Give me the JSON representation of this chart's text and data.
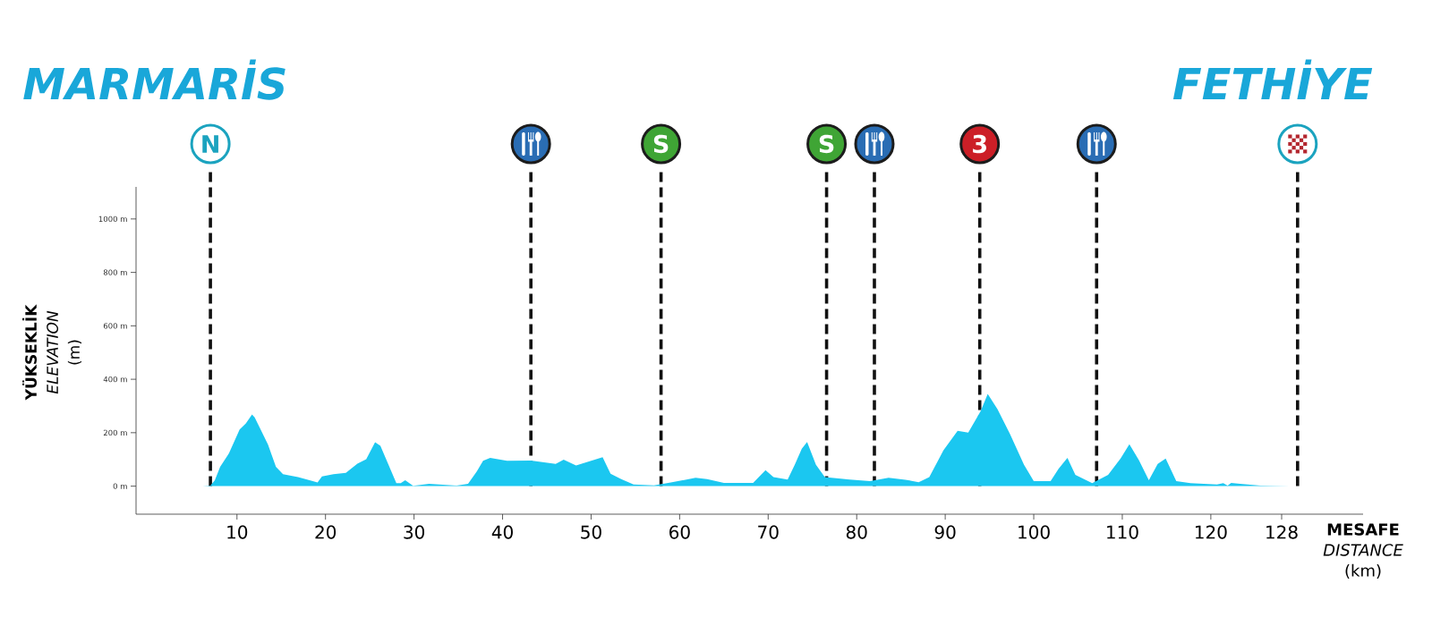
{
  "chart_data": {
    "type": "area",
    "annotations": [
      "MARMARİS",
      "FETHİYE",
      "3"
    ],
    "xlabel": "**MESAFE** *DISTANCE* (km)",
    "ylabel": "**YÜKSEKLİK** *ELEVATION* (m)",
    "color": "#1bc7f0",
    "x": [
      6.1,
      7.0,
      7.5,
      8.1,
      9.1,
      10.3,
      11.0,
      11.7,
      12.0,
      13.5,
      14.4,
      15.2,
      16.9,
      18.2,
      19.1,
      19.6,
      20.9,
      22.3,
      23.6,
      24.6,
      25.6,
      26.2,
      27.0,
      28.0,
      28.5,
      29.0,
      29.9,
      31.7,
      34.8,
      36.1,
      37.1,
      37.8,
      38.6,
      40.5,
      43.2,
      46.0,
      46.9,
      48.3,
      51.3,
      52.2,
      53.4,
      54.8,
      57.1,
      59.0,
      61.8,
      63.1,
      65.0,
      68.3,
      69.7,
      70.6,
      72.2,
      73.0,
      73.8,
      74.4,
      75.4,
      76.4,
      79.2,
      81.5,
      83.6,
      85.5,
      87.0,
      88.2,
      89.8,
      91.4,
      92.6,
      94.0,
      94.8,
      95.9,
      97.3,
      98.9,
      100.0,
      101.9,
      102.8,
      103.8,
      104.7,
      106.6,
      108.4,
      109.8,
      110.8,
      111.9,
      113.0,
      114.0,
      114.9,
      116.1,
      117.7,
      120.7,
      121.4,
      121.9,
      122.3,
      123.3,
      125.6,
      128.9
    ],
    "values": [
      0,
      2,
      22,
      72,
      123,
      212,
      235,
      268,
      257,
      156,
      72,
      45,
      34,
      22,
      14,
      36,
      45,
      50,
      84,
      101,
      164,
      151,
      89,
      11,
      11,
      22,
      1,
      9,
      2,
      9,
      56,
      95,
      106,
      95,
      96,
      83,
      99,
      77,
      108,
      46,
      26,
      6,
      3,
      14,
      31,
      26,
      12,
      12,
      60,
      34,
      25,
      80,
      140,
      165,
      80,
      34,
      25,
      19,
      31,
      24,
      15,
      34,
      134,
      207,
      200,
      281,
      345,
      288,
      196,
      80,
      19,
      19,
      65,
      106,
      42,
      11,
      42,
      103,
      157,
      96,
      22,
      83,
      103,
      19,
      11,
      6,
      11,
      2,
      12,
      9,
      2,
      0
    ],
    "xlim": [
      -1.4,
      137.2
    ],
    "ylim": [
      -105,
      1120
    ],
    "xticks": [
      10,
      20,
      30,
      40,
      50,
      60,
      70,
      80,
      90,
      100,
      110,
      120,
      128
    ],
    "yticks": [
      {
        "value": 0,
        "label": "0 m"
      },
      {
        "value": 200,
        "label": "200 m"
      },
      {
        "value": 400,
        "label": "400 m"
      },
      {
        "value": 600,
        "label": "600 m"
      },
      {
        "value": 800,
        "label": "800 m"
      },
      {
        "value": 1000,
        "label": "1000 m"
      }
    ],
    "ref_lines": [
      {
        "axis": "x",
        "value": 7.0,
        "label": "N",
        "color": "#111111",
        "line_style": "dashed"
      },
      {
        "axis": "x",
        "value": 43.2,
        "color": "#111111",
        "line_style": "dashed"
      },
      {
        "axis": "x",
        "value": 57.9,
        "label": "S",
        "color": "#111111",
        "line_style": "dashed"
      },
      {
        "axis": "x",
        "value": 76.6,
        "label": "S",
        "color": "#111111",
        "line_style": "dashed"
      },
      {
        "axis": "x",
        "value": 82.0,
        "color": "#111111",
        "line_style": "dashed"
      },
      {
        "axis": "x",
        "value": 93.9,
        "color": "#111111",
        "line_style": "dashed"
      },
      {
        "axis": "x",
        "value": 107.1,
        "color": "#111111",
        "line_style": "dashed"
      },
      {
        "axis": "x",
        "value": 129.8,
        "color": "#111111",
        "line_style": "dashed"
      }
    ]
  }
}
